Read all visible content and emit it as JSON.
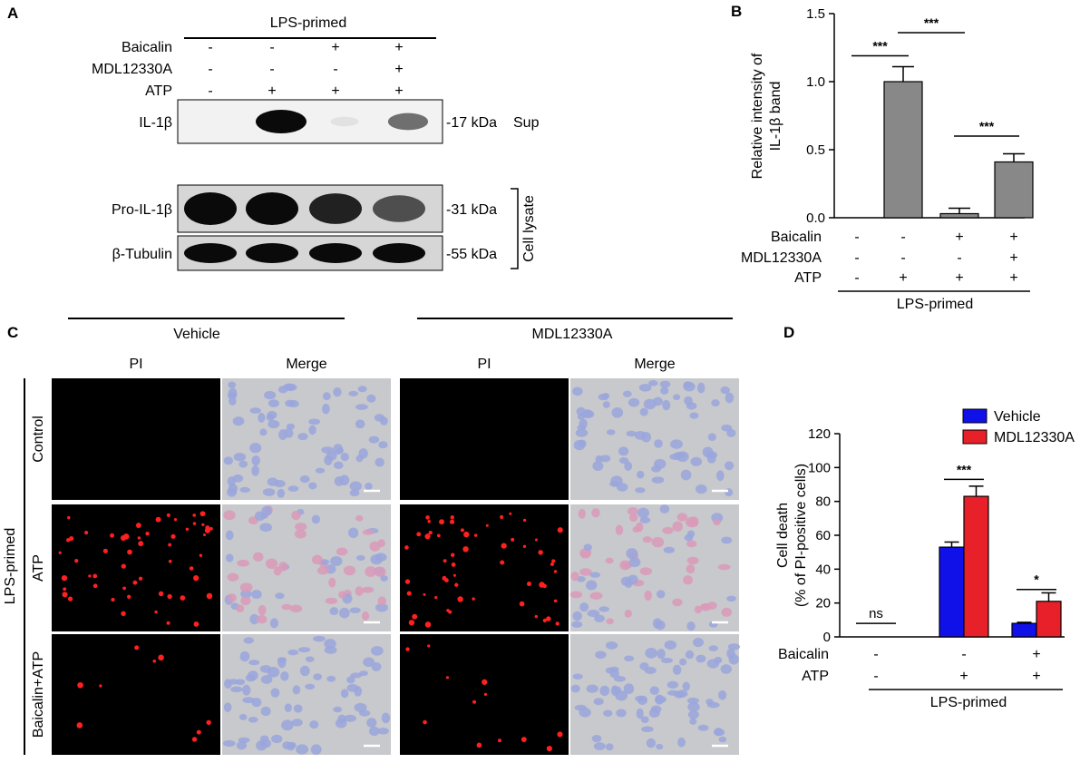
{
  "panels": {
    "a": "A",
    "b": "B",
    "c": "C",
    "d": "D"
  },
  "western_blot": {
    "header": "LPS-primed",
    "conditions": [
      {
        "label": "Baicalin",
        "signs": [
          "-",
          "-",
          "+",
          "+"
        ]
      },
      {
        "label": "MDL12330A",
        "signs": [
          "-",
          "-",
          "-",
          "+"
        ]
      },
      {
        "label": "ATP",
        "signs": [
          "-",
          "+",
          "+",
          "+"
        ]
      }
    ],
    "blots": [
      {
        "name": "IL-1β",
        "marker": "-17 kDa",
        "note": "Sup",
        "intensity": [
          0,
          1.0,
          0.04,
          0.55
        ]
      },
      {
        "name": "Pro-IL-1β",
        "marker": "-31 kDa",
        "note": "",
        "intensity": [
          1.0,
          1.0,
          0.9,
          0.7
        ]
      },
      {
        "name": "β-Tubulin",
        "marker": "-55 kDa",
        "note": "",
        "intensity": [
          1.0,
          1.0,
          1.0,
          1.0
        ]
      }
    ],
    "bracket_label": "Cell lysate"
  },
  "microscopy": {
    "groups": [
      "Vehicle",
      "MDL12330A"
    ],
    "columns": [
      "PI",
      "Merge",
      "PI",
      "Merge"
    ],
    "rows": [
      "Control",
      "ATP",
      "Baicalin+ATP"
    ],
    "side_label": "LPS-primed",
    "colors": {
      "pi_background": "#000000",
      "pi_dot": "#ff2020",
      "merge_background": "#c8c9cc",
      "nucleus": "#9aa6dc"
    }
  },
  "chart_data": [
    {
      "type": "bar",
      "panel": "B",
      "ylabel": "Relative intensity of IL-1β band",
      "ylabel_lines": [
        "Relative intensity of",
        "IL-1β band"
      ],
      "ylim": [
        0,
        1.5
      ],
      "yticks": [
        "0.0",
        "0.5",
        "1.0",
        "1.5"
      ],
      "categories": [
        "1",
        "2",
        "3",
        "4"
      ],
      "values": [
        0,
        1.0,
        0.03,
        0.41
      ],
      "errors": [
        0,
        0.11,
        0.04,
        0.06
      ],
      "color": "#888888",
      "conditions": [
        {
          "label": "Baicalin",
          "signs": [
            "-",
            "-",
            "+",
            "+"
          ]
        },
        {
          "label": "MDL12330A",
          "signs": [
            "-",
            "-",
            "-",
            "+"
          ]
        },
        {
          "label": "ATP",
          "signs": [
            "-",
            "+",
            "+",
            "+"
          ]
        }
      ],
      "group_label": "LPS-primed",
      "significance": [
        {
          "from": 0,
          "to": 1,
          "label": "***",
          "y": 1.19
        },
        {
          "from": 1,
          "to": 2,
          "label": "***",
          "y": 1.36
        },
        {
          "from": 2,
          "to": 3,
          "label": "***",
          "y": 0.6
        }
      ]
    },
    {
      "type": "bar",
      "panel": "D",
      "ylabel": "Cell death (% of PI-positive cells)",
      "ylabel_lines": [
        "Cell death",
        "(% of PI-positive cells)"
      ],
      "ylim": [
        0,
        120
      ],
      "yticks": [
        "0",
        "20",
        "40",
        "60",
        "80",
        "100",
        "120"
      ],
      "categories": [
        "1",
        "2",
        "3"
      ],
      "series": [
        {
          "name": "Vehicle",
          "color": "#1010e8",
          "values": [
            0,
            53,
            8
          ],
          "errors": [
            0,
            3,
            0.6
          ]
        },
        {
          "name": "MDL12330A",
          "color": "#e8202a",
          "values": [
            0,
            83,
            21
          ],
          "errors": [
            0,
            6,
            5
          ]
        }
      ],
      "legend": "top-right",
      "conditions": [
        {
          "label": "Baicalin",
          "signs": [
            "-",
            "-",
            "+"
          ]
        },
        {
          "label": "ATP",
          "signs": [
            "-",
            "+",
            "+"
          ]
        }
      ],
      "group_label": "LPS-primed",
      "significance": [
        {
          "group": 0,
          "label": "ns",
          "y": 8
        },
        {
          "group": 1,
          "label": "***",
          "y": 93
        },
        {
          "group": 2,
          "label": "*",
          "y": 28
        }
      ]
    }
  ]
}
